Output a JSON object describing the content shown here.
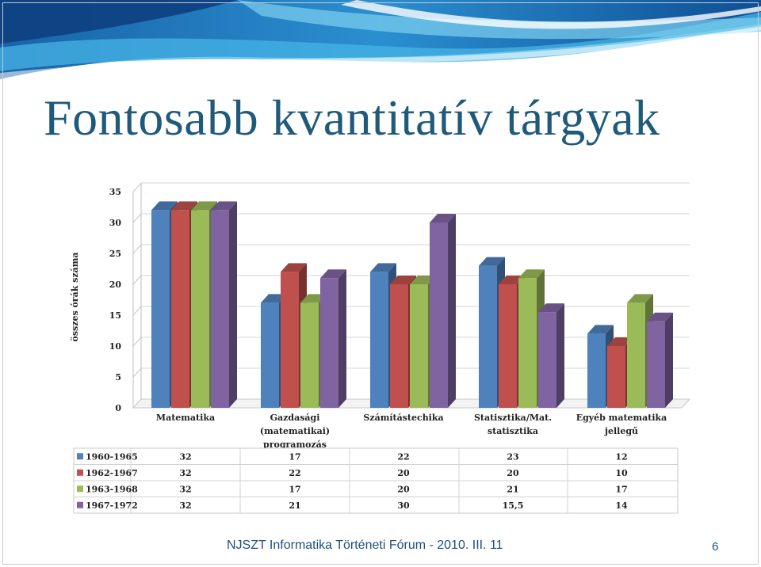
{
  "slide": {
    "title": "Fontosabb kvantitatív tárgyak",
    "footer": "NJSZT Informatika Történeti Fórum - 2010. III. 11",
    "page_number": "6"
  },
  "chart_data": {
    "type": "bar",
    "title": "",
    "xlabel": "",
    "ylabel": "összes órák száma",
    "ylim": [
      0,
      35
    ],
    "yticks": [
      0,
      5,
      10,
      15,
      20,
      25,
      30,
      35
    ],
    "grid": true,
    "legend": "data table below chart",
    "categories": [
      [
        "Matematika"
      ],
      [
        "Gazdasági",
        "(matematikai)",
        "programozás"
      ],
      [
        "Számítástechika"
      ],
      [
        "Statisztika/Mat.",
        "statisztika"
      ],
      [
        "Egyéb matematika",
        "jellegű"
      ]
    ],
    "series": [
      {
        "name": "1960-1965",
        "color": "#4f81bd",
        "values": [
          32,
          17,
          22,
          23,
          12
        ],
        "labels": [
          "32",
          "17",
          "22",
          "23",
          "12"
        ]
      },
      {
        "name": "1962-1967",
        "color": "#c0504d",
        "values": [
          32,
          22,
          20,
          20,
          10
        ],
        "labels": [
          "32",
          "22",
          "20",
          "20",
          "10"
        ]
      },
      {
        "name": "1963-1968",
        "color": "#9bbb59",
        "values": [
          32,
          17,
          20,
          21,
          17
        ],
        "labels": [
          "32",
          "17",
          "20",
          "21",
          "17"
        ]
      },
      {
        "name": "1967-1972",
        "color": "#8064a2",
        "values": [
          32,
          21,
          30,
          15.5,
          14
        ],
        "labels": [
          "32",
          "21",
          "30",
          "15,5",
          "14"
        ]
      }
    ]
  }
}
